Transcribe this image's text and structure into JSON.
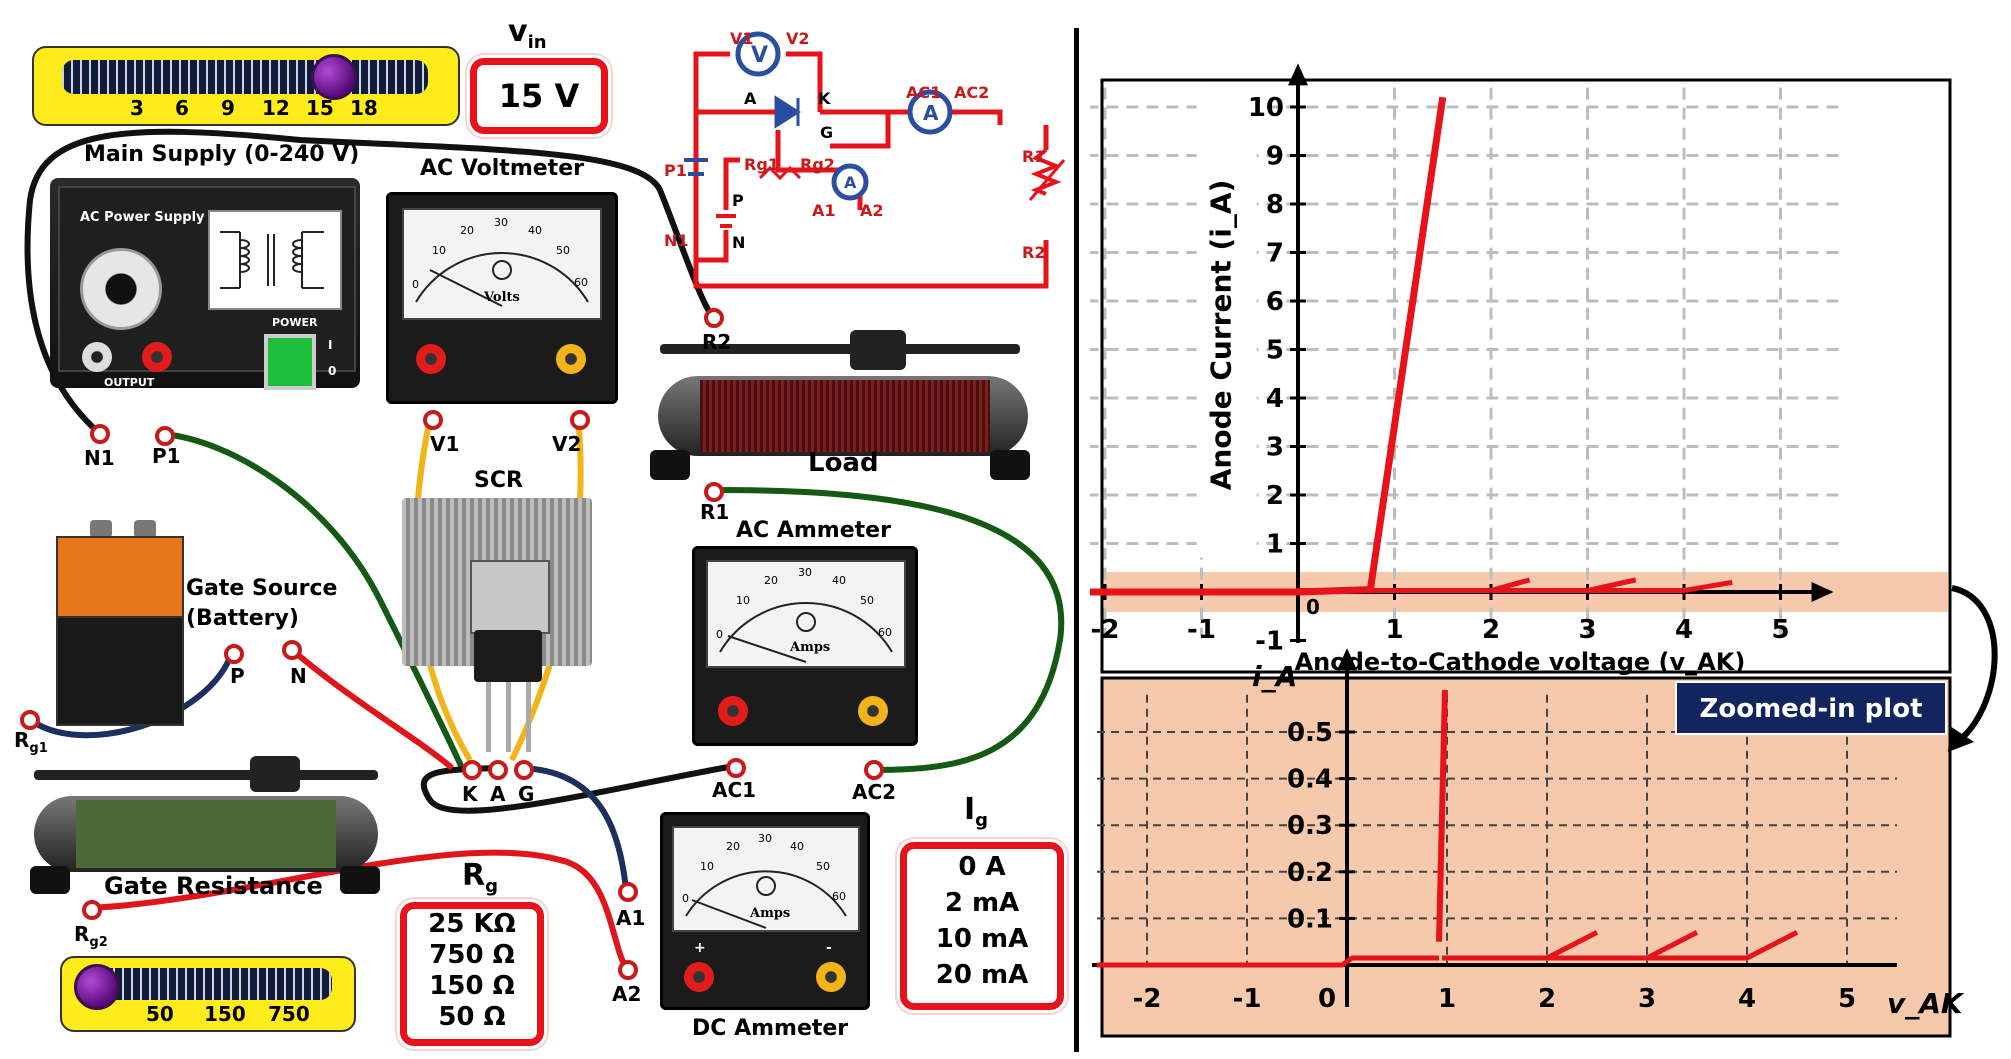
{
  "vin": {
    "label_main": "v",
    "label_sub": "in",
    "value": "15 V",
    "ticks": [
      "3",
      "6",
      "9",
      "12",
      "15",
      "18"
    ]
  },
  "main_supply": {
    "title": "Main Supply (0-240 V)",
    "panel_label": "AC Power Supply",
    "power_label": "POWER",
    "output_label": "OUTPUT",
    "switch_on": "I",
    "switch_off": "0"
  },
  "ac_voltmeter": {
    "title": "AC Voltmeter",
    "unit": "Volts",
    "scale": [
      "0",
      "10",
      "20",
      "30",
      "40",
      "50",
      "60"
    ]
  },
  "ac_ammeter": {
    "title": "AC Ammeter",
    "unit": "Amps",
    "scale": [
      "0",
      "10",
      "20",
      "30",
      "40",
      "50",
      "60"
    ]
  },
  "dc_ammeter": {
    "title": "DC Ammeter",
    "unit": "Amps",
    "scale": [
      "0",
      "10",
      "20",
      "30",
      "40",
      "50",
      "60"
    ],
    "plus": "+",
    "minus": "-"
  },
  "scr": {
    "title": "SCR",
    "pins": [
      "K",
      "A",
      "G"
    ]
  },
  "load": {
    "title": "Load"
  },
  "gate_source": {
    "title": "Gate Source",
    "subtitle": "(Battery)"
  },
  "gate_resistance": {
    "title": "Gate Resistance"
  },
  "rg": {
    "label_main": "R",
    "label_sub": "g",
    "values": [
      "25 KΩ",
      "750 Ω",
      "150 Ω",
      "50 Ω"
    ],
    "ticks": [
      "50",
      "150",
      "750"
    ]
  },
  "ig": {
    "label_main": "I",
    "label_sub": "g",
    "values": [
      "0 A",
      "2 mA",
      "10 mA",
      "20 mA"
    ]
  },
  "terminals": {
    "N1": "N1",
    "P1": "P1",
    "V1": "V1",
    "V2": "V2",
    "R1": "R1",
    "R2": "R2",
    "AC1": "AC1",
    "AC2": "AC2",
    "P": "P",
    "N": "N",
    "Rg1_main": "R",
    "Rg1_sub": "g1",
    "Rg2_main": "R",
    "Rg2_sub": "g2",
    "A1": "A1",
    "A2": "A2",
    "K": "K",
    "A": "A",
    "G": "G"
  },
  "schematic": {
    "labels": [
      "V1",
      "V2",
      "A",
      "K",
      "G",
      "AC1",
      "AC2",
      "P1",
      "N1",
      "R1",
      "R2",
      "A1",
      "A2",
      "P",
      "N",
      "Rg1",
      "Rg2"
    ],
    "voltmeter_symbol": "V",
    "ammeter_symbol": "A"
  },
  "colors": {
    "accent_red": "#e8121b",
    "slider_yellow": "#ffec1a",
    "highlight": "#f6c9ad",
    "title_box": "#12255e",
    "curve": "#e8121b"
  },
  "chart_data": [
    {
      "type": "line",
      "title": "",
      "xlabel": "Anode-to-Cathode voltage (v_AK)",
      "ylabel": "Anode Current (i_A)",
      "xlim": [
        -2.5,
        5.5
      ],
      "ylim": [
        -1,
        10.5
      ],
      "x_ticks": [
        "-2",
        "-1",
        "1",
        "2",
        "3",
        "4",
        "5"
      ],
      "y_ticks": [
        "1",
        "2",
        "3",
        "4",
        "5",
        "6",
        "7",
        "8",
        "9",
        "10"
      ],
      "x_ticks_neg": [
        "-1"
      ],
      "origin_label": "0",
      "grid": true,
      "series": [
        {
          "x": [
            -2.5,
            0,
            0.75,
            1.5
          ],
          "y": [
            0,
            0,
            0.05,
            10.2
          ]
        },
        {
          "x": [
            0,
            2.0,
            2.4
          ],
          "y": [
            0.03,
            0.03,
            0.25
          ]
        },
        {
          "x": [
            2.0,
            3.0,
            3.5
          ],
          "y": [
            0.03,
            0.03,
            0.25
          ]
        },
        {
          "x": [
            3.0,
            4.0,
            4.5
          ],
          "y": [
            0.03,
            0.03,
            0.2
          ]
        }
      ]
    },
    {
      "type": "line",
      "title": "Zoomed-in plot",
      "xlabel": "v_AK",
      "ylabel": "i_A",
      "xlim": [
        -2.5,
        5.5
      ],
      "ylim": [
        -0.05,
        0.6
      ],
      "x_ticks": [
        "-2",
        "-1",
        "0",
        "1",
        "2",
        "3",
        "4",
        "5"
      ],
      "y_ticks": [
        "0.1",
        "0.2",
        "0.3",
        "0.4",
        "0.5"
      ],
      "grid": true,
      "series": [
        {
          "x": [
            -2.5,
            -0.05,
            0.05,
            0.92
          ],
          "y": [
            0,
            0,
            0.015,
            0.015
          ]
        },
        {
          "x": [
            0.92,
            0.98
          ],
          "y": [
            0.05,
            0.59
          ]
        },
        {
          "x": [
            0.95,
            2.0,
            2.5
          ],
          "y": [
            0.015,
            0.015,
            0.07
          ]
        },
        {
          "x": [
            2.0,
            3.0,
            3.5
          ],
          "y": [
            0.015,
            0.015,
            0.07
          ]
        },
        {
          "x": [
            3.0,
            4.0,
            4.5
          ],
          "y": [
            0.015,
            0.015,
            0.07
          ]
        }
      ]
    }
  ]
}
